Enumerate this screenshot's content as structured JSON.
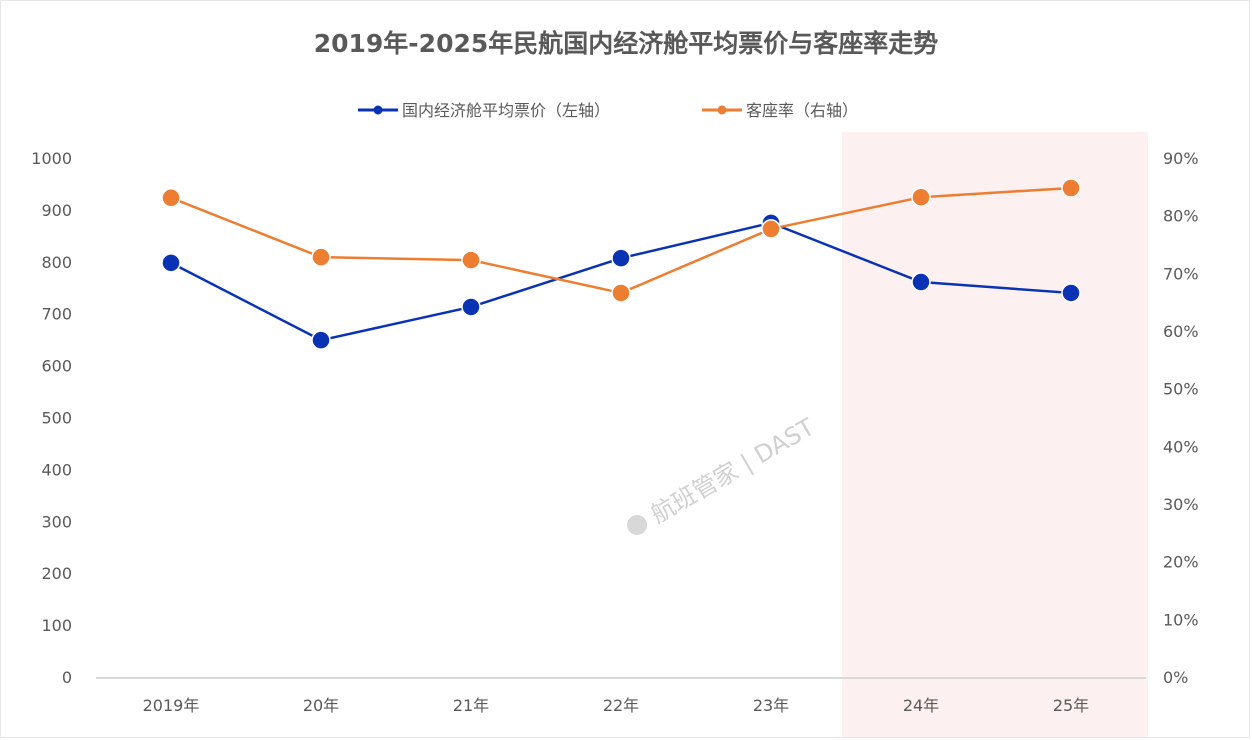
{
  "chart_data": {
    "type": "line",
    "title": "2019年-2025年民航国内经济舱平均票价与客座率走势",
    "categories": [
      "2019年",
      "20年",
      "21年",
      "22年",
      "23年",
      "24年",
      "25年"
    ],
    "series": [
      {
        "name": "国内经济舱平均票价（左轴）",
        "axis": "left",
        "color": "#0A32B4",
        "values": [
          798,
          649,
          713,
          807,
          875,
          761,
          740
        ]
      },
      {
        "name": "客座率（右轴）",
        "axis": "right",
        "color": "#ED7D31",
        "values": [
          83.1,
          72.8,
          72.3,
          66.6,
          77.7,
          83.2,
          84.8
        ]
      }
    ],
    "left_axis": {
      "min": 0,
      "max": 1000,
      "step": 100,
      "ticks": [
        "0",
        "100",
        "200",
        "300",
        "400",
        "500",
        "600",
        "700",
        "800",
        "900",
        "1000"
      ]
    },
    "right_axis": {
      "min": 0,
      "max": 90,
      "step": 10,
      "ticks": [
        "0%",
        "10%",
        "20%",
        "30%",
        "40%",
        "50%",
        "60%",
        "70%",
        "80%",
        "90%"
      ]
    },
    "highlight_categories": [
      "24年",
      "25年"
    ],
    "highlight_color": "#FDF0F0",
    "legend_position": "top",
    "grid": false,
    "watermark": "航班管家 | DAST"
  }
}
